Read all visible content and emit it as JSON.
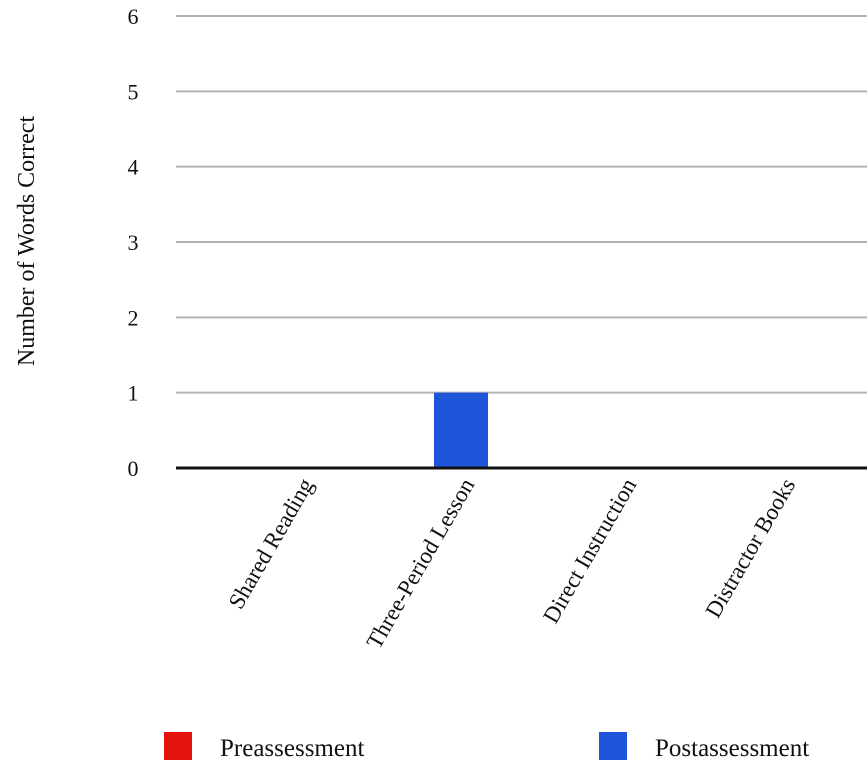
{
  "chart_data": {
    "type": "bar",
    "title": "",
    "xlabel": "",
    "ylabel": "Number of Words Correct",
    "ylim": [
      0,
      6
    ],
    "yticks": [
      0,
      1,
      2,
      3,
      4,
      5,
      6
    ],
    "categories": [
      "Shared Reading",
      "Three-Period Lesson",
      "Direct Instruction",
      "Distractor Books"
    ],
    "series": [
      {
        "name": "Preassessment",
        "color": "#e3120b",
        "values": [
          0,
          0,
          0,
          0
        ]
      },
      {
        "name": "Postassessment",
        "color": "#1f55d9",
        "values": [
          0,
          1,
          0,
          0
        ]
      }
    ],
    "grid": true,
    "legend_position": "bottom"
  }
}
